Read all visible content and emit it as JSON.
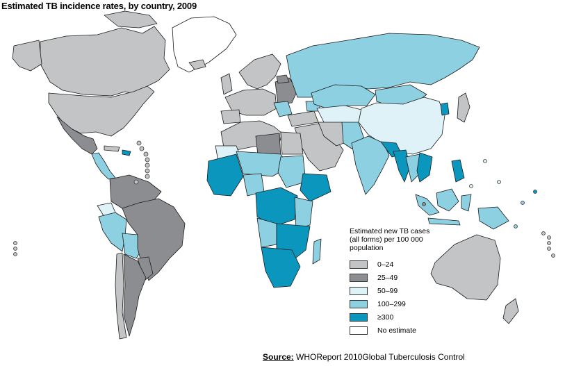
{
  "title": "Estimated TB incidence rates, by country, 2009",
  "colors": {
    "cat_0_24": "#c2c4c6",
    "cat_25_49": "#8b8d90",
    "cat_50_99": "#def2f8",
    "cat_100_299": "#8dd0e2",
    "cat_300_plus": "#0b97bd",
    "no_estimate": "#ffffff",
    "border": "#1a1a1a"
  },
  "legend": {
    "title": "Estimated new TB cases (all forms) per 100 000 population",
    "items": [
      {
        "label": "0–24",
        "color": "#c2c4c6"
      },
      {
        "label": "25–49",
        "color": "#8b8d90"
      },
      {
        "label": "50–99",
        "color": "#def2f8"
      },
      {
        "label": "100–299",
        "color": "#8dd0e2"
      },
      {
        "label": "≥300",
        "color": "#0b97bd"
      },
      {
        "label": "No estimate",
        "color": "#ffffff"
      }
    ]
  },
  "source": {
    "label": "Source:",
    "text": "WHOReport 2010Global Tuberculosis Control"
  }
}
